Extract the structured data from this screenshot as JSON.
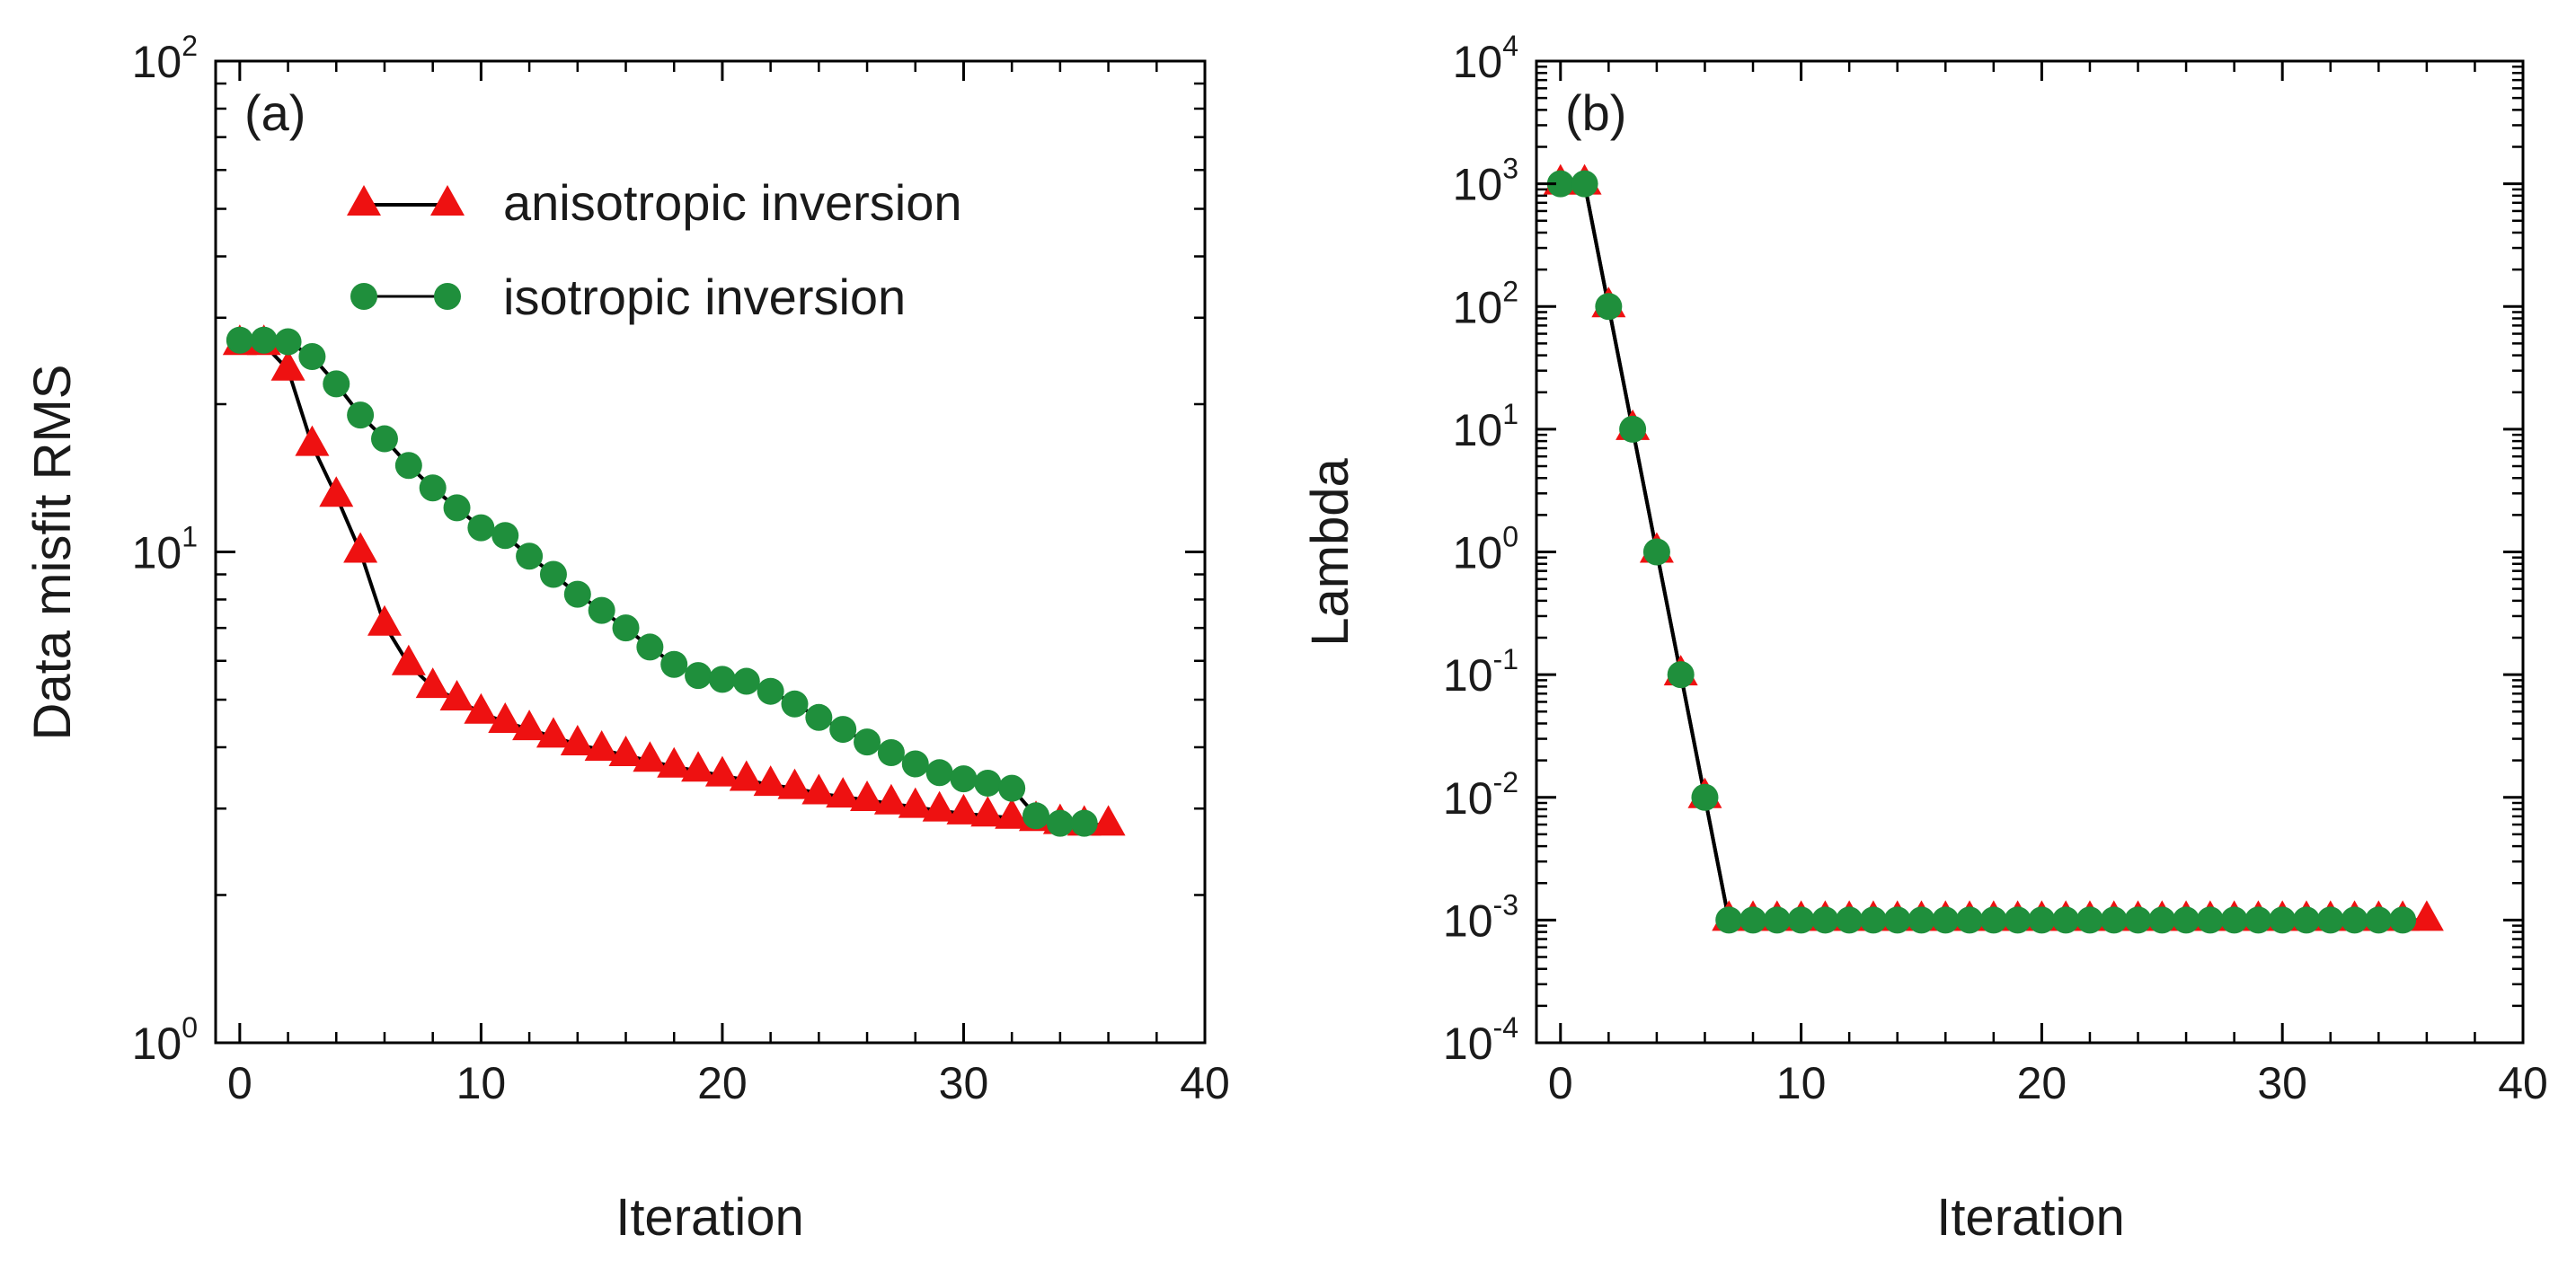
{
  "chart_data": [
    {
      "type": "line",
      "panel_label": "(a)",
      "xlabel": "Iteration",
      "ylabel": "Data misfit RMS",
      "xlim": [
        -1,
        40
      ],
      "ylim": [
        1,
        100
      ],
      "yscale": "log",
      "xticks": [
        "0",
        "10",
        "20",
        "30",
        "40"
      ],
      "xtick_values": [
        0,
        10,
        20,
        30,
        40
      ],
      "yticks": [
        {
          "base": "10",
          "exp": "0",
          "value": 1
        },
        {
          "base": "10",
          "exp": "1",
          "value": 10
        },
        {
          "base": "10",
          "exp": "2",
          "value": 100
        }
      ],
      "legend_position": "top-right",
      "grid": false,
      "series": [
        {
          "name": "anisotropic inversion",
          "marker": "triangle",
          "color": "#ee1111",
          "x": [
            0,
            1,
            2,
            3,
            4,
            5,
            6,
            7,
            8,
            9,
            10,
            11,
            12,
            13,
            14,
            15,
            16,
            17,
            18,
            19,
            20,
            21,
            22,
            23,
            24,
            25,
            26,
            27,
            28,
            29,
            30,
            31,
            32,
            33,
            34,
            35,
            36
          ],
          "y": [
            26.5,
            26.5,
            23.5,
            16.5,
            13,
            10,
            7.1,
            5.9,
            5.3,
            5,
            4.7,
            4.5,
            4.35,
            4.2,
            4.05,
            3.95,
            3.85,
            3.75,
            3.65,
            3.58,
            3.5,
            3.43,
            3.35,
            3.3,
            3.22,
            3.17,
            3.12,
            3.07,
            3.02,
            2.97,
            2.93,
            2.9,
            2.87,
            2.84,
            2.8,
            2.78,
            2.78
          ]
        },
        {
          "name": "isotropic inversion",
          "marker": "circle",
          "color": "#1f8f3c",
          "x": [
            0,
            1,
            2,
            3,
            4,
            5,
            6,
            7,
            8,
            9,
            10,
            11,
            12,
            13,
            14,
            15,
            16,
            17,
            18,
            19,
            20,
            21,
            22,
            23,
            24,
            25,
            26,
            27,
            28,
            29,
            30,
            31,
            32,
            33,
            34,
            35
          ],
          "y": [
            27,
            27,
            26.8,
            25,
            22,
            19,
            17,
            15,
            13.5,
            12.3,
            11.2,
            10.8,
            9.8,
            9,
            8.2,
            7.6,
            7,
            6.4,
            5.9,
            5.6,
            5.5,
            5.45,
            5.2,
            4.9,
            4.6,
            4.35,
            4.1,
            3.9,
            3.7,
            3.55,
            3.45,
            3.38,
            3.3,
            2.9,
            2.8,
            2.8
          ]
        }
      ]
    },
    {
      "type": "line",
      "panel_label": "(b)",
      "xlabel": "Iteration",
      "ylabel": "Lambda",
      "xlim": [
        -1,
        40
      ],
      "ylim": [
        0.0001,
        10000
      ],
      "yscale": "log",
      "xticks": [
        "0",
        "10",
        "20",
        "30",
        "40"
      ],
      "xtick_values": [
        0,
        10,
        20,
        30,
        40
      ],
      "yticks": [
        {
          "base": "10",
          "exp": "-4",
          "value": 0.0001
        },
        {
          "base": "10",
          "exp": "-3",
          "value": 0.001
        },
        {
          "base": "10",
          "exp": "-2",
          "value": 0.01
        },
        {
          "base": "10",
          "exp": "-1",
          "value": 0.1
        },
        {
          "base": "10",
          "exp": "0",
          "value": 1
        },
        {
          "base": "10",
          "exp": "1",
          "value": 10
        },
        {
          "base": "10",
          "exp": "2",
          "value": 100
        },
        {
          "base": "10",
          "exp": "3",
          "value": 1000
        },
        {
          "base": "10",
          "exp": "4",
          "value": 10000
        }
      ],
      "grid": false,
      "series": [
        {
          "name": "anisotropic inversion",
          "marker": "triangle",
          "color": "#ee1111",
          "x": [
            0,
            1,
            2,
            3,
            4,
            5,
            6,
            7,
            8,
            9,
            10,
            11,
            12,
            13,
            14,
            15,
            16,
            17,
            18,
            19,
            20,
            21,
            22,
            23,
            24,
            25,
            26,
            27,
            28,
            29,
            30,
            31,
            32,
            33,
            34,
            35,
            36
          ],
          "y": [
            1000,
            1000,
            100,
            10,
            1,
            0.1,
            0.01,
            0.001,
            0.001,
            0.001,
            0.001,
            0.001,
            0.001,
            0.001,
            0.001,
            0.001,
            0.001,
            0.001,
            0.001,
            0.001,
            0.001,
            0.001,
            0.001,
            0.001,
            0.001,
            0.001,
            0.001,
            0.001,
            0.001,
            0.001,
            0.001,
            0.001,
            0.001,
            0.001,
            0.001,
            0.001,
            0.001
          ]
        },
        {
          "name": "isotropic inversion",
          "marker": "circle",
          "color": "#1f8f3c",
          "x": [
            0,
            1,
            2,
            3,
            4,
            5,
            6,
            7,
            8,
            9,
            10,
            11,
            12,
            13,
            14,
            15,
            16,
            17,
            18,
            19,
            20,
            21,
            22,
            23,
            24,
            25,
            26,
            27,
            28,
            29,
            30,
            31,
            32,
            33,
            34,
            35
          ],
          "y": [
            1000,
            1000,
            100,
            10,
            1,
            0.1,
            0.01,
            0.001,
            0.001,
            0.001,
            0.001,
            0.001,
            0.001,
            0.001,
            0.001,
            0.001,
            0.001,
            0.001,
            0.001,
            0.001,
            0.001,
            0.001,
            0.001,
            0.001,
            0.001,
            0.001,
            0.001,
            0.001,
            0.001,
            0.001,
            0.001,
            0.001,
            0.001,
            0.001,
            0.001,
            0.001
          ]
        }
      ]
    }
  ]
}
